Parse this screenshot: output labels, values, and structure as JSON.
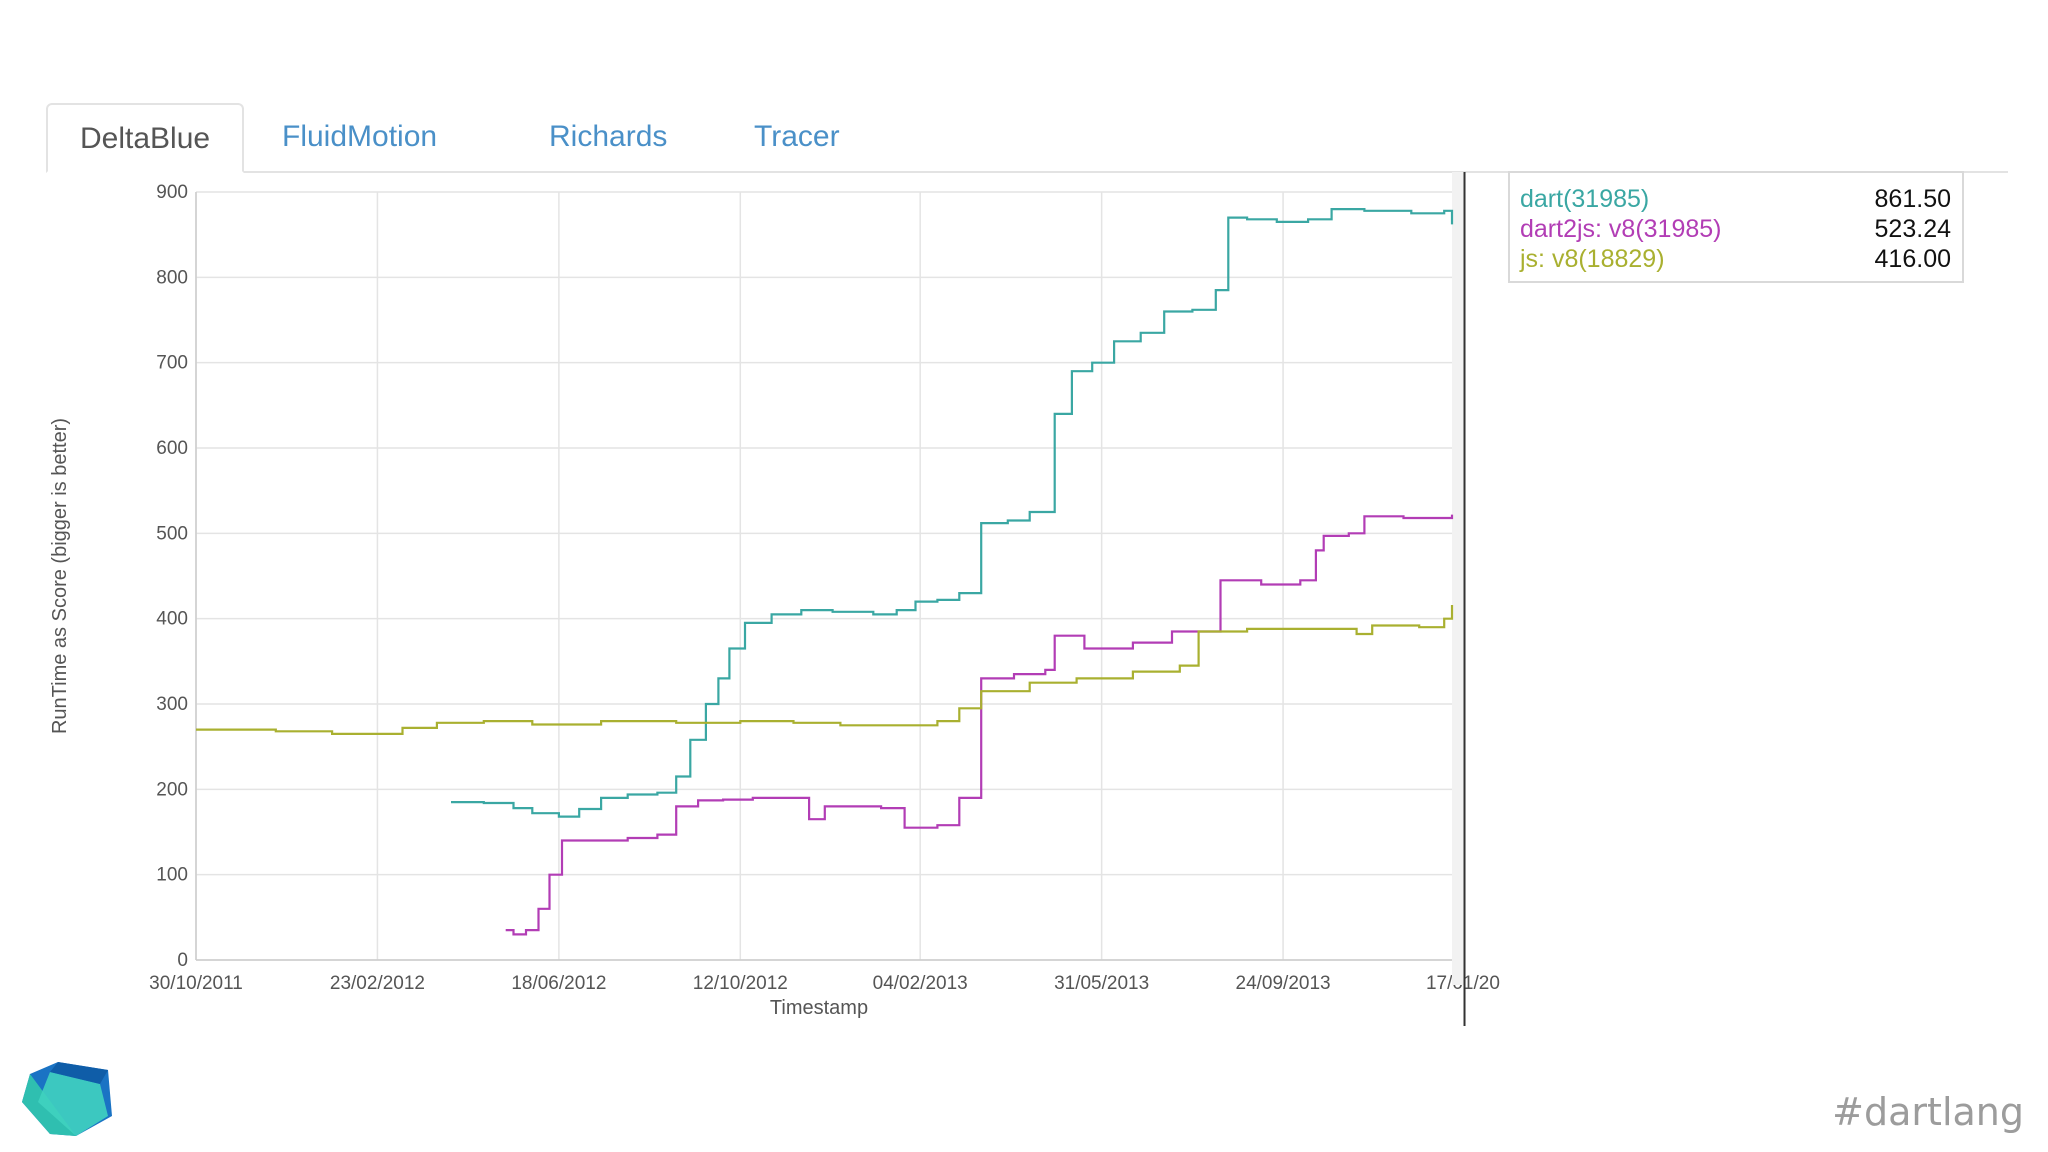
{
  "tabs": [
    {
      "label": "DeltaBlue",
      "active": true
    },
    {
      "label": "FluidMotion",
      "active": false
    },
    {
      "label": "Richards",
      "active": false
    },
    {
      "label": "Tracer",
      "active": false
    }
  ],
  "legend": [
    {
      "name": "dart(31985)",
      "value": "861.50",
      "color": "#3aa7a3"
    },
    {
      "name": "dart2js: v8(31985)",
      "value": "523.24",
      "color": "#b23db5"
    },
    {
      "name": "js: v8(18829)",
      "value": "416.00",
      "color": "#a9b030"
    }
  ],
  "footer": {
    "hashtag": "#dartlang"
  },
  "chart_data": {
    "type": "line",
    "title": "",
    "xlabel": "Timestamp",
    "ylabel": "RunTime as Score (bigger is better)",
    "ylim": [
      0,
      900
    ],
    "y_ticks": [
      "0",
      "100",
      "200",
      "300",
      "400",
      "500",
      "600",
      "700",
      "800",
      "900"
    ],
    "x_ticks": [
      "30/10/2011",
      "23/02/2012",
      "18/06/2012",
      "12/10/2012",
      "04/02/2013",
      "31/05/2013",
      "24/09/2013",
      "17/01/20"
    ],
    "x_range": [
      "2011-10-30",
      "2014-01-10"
    ],
    "cursor_date": "2014-01-18",
    "grid": true,
    "legend_placement": "right",
    "series": [
      {
        "name": "dart(31985)",
        "color": "#3aa7a3",
        "points": [
          [
            "2012-04-10",
            185
          ],
          [
            "2012-05-01",
            184
          ],
          [
            "2012-05-20",
            178
          ],
          [
            "2012-06-01",
            172
          ],
          [
            "2012-06-18",
            168
          ],
          [
            "2012-07-01",
            177
          ],
          [
            "2012-07-15",
            190
          ],
          [
            "2012-08-01",
            194
          ],
          [
            "2012-08-20",
            196
          ],
          [
            "2012-09-01",
            215
          ],
          [
            "2012-09-10",
            258
          ],
          [
            "2012-09-20",
            300
          ],
          [
            "2012-09-28",
            330
          ],
          [
            "2012-10-05",
            365
          ],
          [
            "2012-10-15",
            395
          ],
          [
            "2012-11-01",
            405
          ],
          [
            "2012-11-20",
            410
          ],
          [
            "2012-12-10",
            408
          ],
          [
            "2013-01-05",
            405
          ],
          [
            "2013-01-20",
            410
          ],
          [
            "2013-02-01",
            420
          ],
          [
            "2013-02-15",
            422
          ],
          [
            "2013-03-01",
            430
          ],
          [
            "2013-03-15",
            512
          ],
          [
            "2013-04-01",
            515
          ],
          [
            "2013-04-15",
            525
          ],
          [
            "2013-05-01",
            640
          ],
          [
            "2013-05-12",
            690
          ],
          [
            "2013-05-25",
            700
          ],
          [
            "2013-06-08",
            725
          ],
          [
            "2013-06-25",
            735
          ],
          [
            "2013-07-10",
            760
          ],
          [
            "2013-07-28",
            762
          ],
          [
            "2013-08-12",
            785
          ],
          [
            "2013-08-20",
            870
          ],
          [
            "2013-09-01",
            868
          ],
          [
            "2013-09-20",
            865
          ],
          [
            "2013-10-10",
            868
          ],
          [
            "2013-10-25",
            880
          ],
          [
            "2013-11-15",
            878
          ],
          [
            "2013-12-15",
            875
          ],
          [
            "2014-01-05",
            878
          ],
          [
            "2014-01-10",
            862
          ]
        ]
      },
      {
        "name": "dart2js: v8(31985)",
        "color": "#b23db5",
        "points": [
          [
            "2012-05-15",
            35
          ],
          [
            "2012-05-20",
            30
          ],
          [
            "2012-05-28",
            35
          ],
          [
            "2012-06-05",
            60
          ],
          [
            "2012-06-12",
            100
          ],
          [
            "2012-06-20",
            140
          ],
          [
            "2012-07-10",
            140
          ],
          [
            "2012-08-01",
            143
          ],
          [
            "2012-08-20",
            147
          ],
          [
            "2012-09-01",
            180
          ],
          [
            "2012-09-15",
            187
          ],
          [
            "2012-10-01",
            188
          ],
          [
            "2012-10-20",
            190
          ],
          [
            "2012-11-15",
            190
          ],
          [
            "2012-11-25",
            165
          ],
          [
            "2012-12-05",
            180
          ],
          [
            "2013-01-10",
            178
          ],
          [
            "2013-01-25",
            155
          ],
          [
            "2013-02-15",
            158
          ],
          [
            "2013-03-01",
            190
          ],
          [
            "2013-03-15",
            330
          ],
          [
            "2013-04-05",
            335
          ],
          [
            "2013-04-25",
            340
          ],
          [
            "2013-05-01",
            380
          ],
          [
            "2013-05-20",
            365
          ],
          [
            "2013-06-20",
            372
          ],
          [
            "2013-07-15",
            385
          ],
          [
            "2013-08-05",
            385
          ],
          [
            "2013-08-15",
            445
          ],
          [
            "2013-09-10",
            440
          ],
          [
            "2013-10-05",
            445
          ],
          [
            "2013-10-15",
            480
          ],
          [
            "2013-10-20",
            497
          ],
          [
            "2013-11-05",
            500
          ],
          [
            "2013-11-15",
            520
          ],
          [
            "2013-12-10",
            518
          ],
          [
            "2014-01-10",
            522
          ]
        ]
      },
      {
        "name": "js: v8(18829)",
        "color": "#a9b030",
        "points": [
          [
            "2011-10-30",
            270
          ],
          [
            "2011-12-20",
            268
          ],
          [
            "2012-01-25",
            265
          ],
          [
            "2012-02-23",
            265
          ],
          [
            "2012-03-10",
            272
          ],
          [
            "2012-04-01",
            278
          ],
          [
            "2012-05-01",
            280
          ],
          [
            "2012-06-01",
            276
          ],
          [
            "2012-07-15",
            280
          ],
          [
            "2012-09-01",
            278
          ],
          [
            "2012-10-12",
            280
          ],
          [
            "2012-11-15",
            278
          ],
          [
            "2012-12-15",
            275
          ],
          [
            "2013-01-20",
            275
          ],
          [
            "2013-02-15",
            280
          ],
          [
            "2013-03-01",
            295
          ],
          [
            "2013-03-15",
            315
          ],
          [
            "2013-04-15",
            325
          ],
          [
            "2013-05-15",
            330
          ],
          [
            "2013-06-20",
            338
          ],
          [
            "2013-07-20",
            345
          ],
          [
            "2013-08-01",
            385
          ],
          [
            "2013-09-01",
            388
          ],
          [
            "2013-10-01",
            388
          ],
          [
            "2013-11-10",
            382
          ],
          [
            "2013-11-20",
            392
          ],
          [
            "2013-12-20",
            390
          ],
          [
            "2014-01-05",
            400
          ],
          [
            "2014-01-10",
            416
          ]
        ]
      }
    ]
  }
}
